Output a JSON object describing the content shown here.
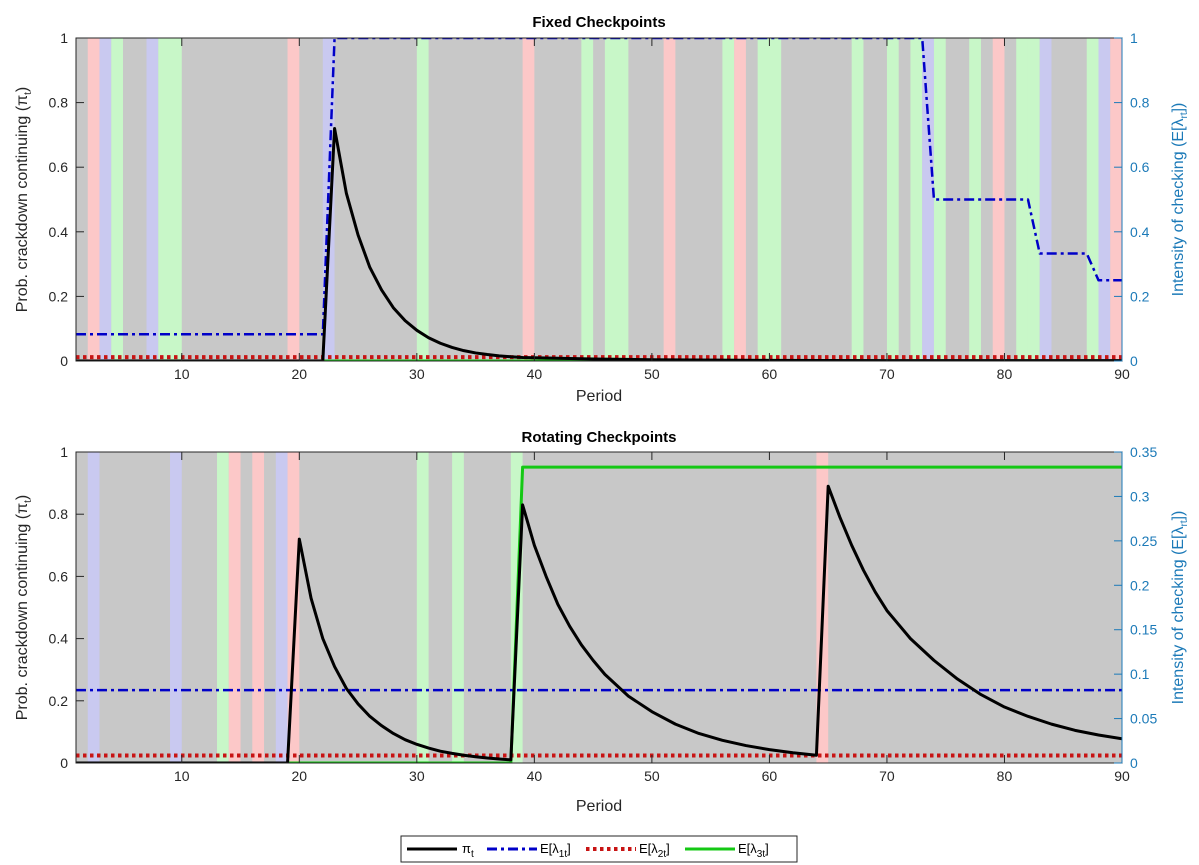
{
  "colors": {
    "background_gray": "#c8c8c8",
    "band_blue": "#c9c9f0",
    "band_red": "#fcc8c8",
    "band_green": "#c8f7c8",
    "pi_line": "#000000",
    "lambda1_line": "#0000c8",
    "lambda2_line": "#c81414",
    "lambda3_line": "#14c814",
    "right_axis": "#1c7ab8"
  },
  "legend": {
    "pi": "π",
    "pi_sub": "t",
    "l1": "E[λ",
    "l1_sub": "1t",
    "l2": "E[λ",
    "l2_sub": "2t",
    "l3": "E[λ",
    "l3_sub": "3t",
    "close": "]"
  },
  "chart_data": [
    {
      "type": "line",
      "title": "Fixed Checkpoints",
      "xlabel": "Period",
      "ylabel_left": "Prob. crackdown continuing (π",
      "ylabel_left_sub": "t",
      "ylabel_left_close": ")",
      "ylabel_right": "Intensity of checking (E[λ",
      "ylabel_right_sub": "rt",
      "ylabel_right_close": "])",
      "xlim": [
        1,
        90
      ],
      "ylim_left": [
        0,
        1
      ],
      "ylim_right": [
        0,
        1
      ],
      "xticks": [
        10,
        20,
        30,
        40,
        50,
        60,
        70,
        80,
        90
      ],
      "yticks_left": [
        0,
        0.2,
        0.4,
        0.6,
        0.8,
        1
      ],
      "yticks_left_labels": [
        "0",
        "0.2",
        "0.4",
        "0.6",
        "0.8",
        "1"
      ],
      "yticks_right": [
        0,
        0.2,
        0.4,
        0.6,
        0.8,
        1
      ],
      "yticks_right_labels": [
        "0",
        "0.2",
        "0.4",
        "0.6",
        "0.8",
        "1"
      ],
      "bands": [
        {
          "start": 2,
          "end": 3,
          "color": "red"
        },
        {
          "start": 3,
          "end": 4,
          "color": "blue"
        },
        {
          "start": 4,
          "end": 5,
          "color": "green"
        },
        {
          "start": 7,
          "end": 8,
          "color": "blue"
        },
        {
          "start": 8,
          "end": 10,
          "color": "green"
        },
        {
          "start": 19,
          "end": 20,
          "color": "red"
        },
        {
          "start": 22,
          "end": 23,
          "color": "blue"
        },
        {
          "start": 30,
          "end": 31,
          "color": "green"
        },
        {
          "start": 39,
          "end": 40,
          "color": "red"
        },
        {
          "start": 44,
          "end": 45,
          "color": "green"
        },
        {
          "start": 46,
          "end": 48,
          "color": "green"
        },
        {
          "start": 51,
          "end": 52,
          "color": "red"
        },
        {
          "start": 56,
          "end": 57,
          "color": "green"
        },
        {
          "start": 57,
          "end": 58,
          "color": "red"
        },
        {
          "start": 59,
          "end": 61,
          "color": "green"
        },
        {
          "start": 67,
          "end": 68,
          "color": "green"
        },
        {
          "start": 70,
          "end": 71,
          "color": "green"
        },
        {
          "start": 72,
          "end": 73,
          "color": "green"
        },
        {
          "start": 73,
          "end": 74,
          "color": "blue"
        },
        {
          "start": 74,
          "end": 75,
          "color": "green"
        },
        {
          "start": 77,
          "end": 78,
          "color": "green"
        },
        {
          "start": 79,
          "end": 80,
          "color": "red"
        },
        {
          "start": 81,
          "end": 82,
          "color": "green"
        },
        {
          "start": 82,
          "end": 83,
          "color": "green"
        },
        {
          "start": 83,
          "end": 84,
          "color": "blue"
        },
        {
          "start": 87,
          "end": 88,
          "color": "green"
        },
        {
          "start": 88,
          "end": 89,
          "color": "blue"
        },
        {
          "start": 89,
          "end": 90,
          "color": "red"
        }
      ],
      "series": [
        {
          "key": "pi",
          "axis": "left",
          "color": "#000000",
          "style": "solid",
          "x": [
            1,
            22,
            23,
            24,
            25,
            26,
            27,
            28,
            29,
            30,
            31,
            32,
            33,
            34,
            35,
            36,
            37,
            38,
            39,
            40,
            45,
            50,
            60,
            70,
            80,
            90
          ],
          "y": [
            0,
            0,
            0.72,
            0.52,
            0.39,
            0.29,
            0.22,
            0.165,
            0.125,
            0.095,
            0.072,
            0.055,
            0.042,
            0.032,
            0.025,
            0.02,
            0.016,
            0.013,
            0.011,
            0.01,
            0.006,
            0.004,
            0.002,
            0.001,
            0.001,
            0.001
          ]
        },
        {
          "key": "l1",
          "axis": "right",
          "color": "#0000c8",
          "style": "dashdot",
          "x": [
            1,
            22,
            23,
            73,
            74,
            82,
            83,
            87,
            88,
            89,
            90
          ],
          "y": [
            0.083,
            0.083,
            1,
            1,
            0.5,
            0.5,
            0.333,
            0.333,
            0.25,
            0.25,
            0.25
          ]
        },
        {
          "key": "l2",
          "axis": "right",
          "color": "#c81414",
          "style": "dotted",
          "x": [
            1,
            90
          ],
          "y": [
            0.012,
            0.012
          ]
        },
        {
          "key": "l3",
          "axis": "right",
          "color": "#14c814",
          "style": "solid",
          "x": [
            1,
            90
          ],
          "y": [
            0,
            0
          ]
        }
      ]
    },
    {
      "type": "line",
      "title": "Rotating Checkpoints",
      "xlabel": "Period",
      "ylabel_left": "Prob. crackdown continuing (π",
      "ylabel_left_sub": "t",
      "ylabel_left_close": ")",
      "ylabel_right": "Intensity of checking (E[λ",
      "ylabel_right_sub": "rt",
      "ylabel_right_close": "])",
      "xlim": [
        1,
        90
      ],
      "ylim_left": [
        0,
        1
      ],
      "ylim_right": [
        0,
        0.35
      ],
      "xticks": [
        10,
        20,
        30,
        40,
        50,
        60,
        70,
        80,
        90
      ],
      "yticks_left": [
        0,
        0.2,
        0.4,
        0.6,
        0.8,
        1
      ],
      "yticks_left_labels": [
        "0",
        "0.2",
        "0.4",
        "0.6",
        "0.8",
        "1"
      ],
      "yticks_right": [
        0,
        0.05,
        0.1,
        0.15,
        0.2,
        0.25,
        0.3,
        0.35
      ],
      "yticks_right_labels": [
        "0",
        "0.05",
        "0.1",
        "0.15",
        "0.2",
        "0.25",
        "0.3",
        "0.35"
      ],
      "bands": [
        {
          "start": 2,
          "end": 3,
          "color": "blue"
        },
        {
          "start": 9,
          "end": 10,
          "color": "blue"
        },
        {
          "start": 13,
          "end": 14,
          "color": "green"
        },
        {
          "start": 14,
          "end": 15,
          "color": "red"
        },
        {
          "start": 16,
          "end": 17,
          "color": "red"
        },
        {
          "start": 18,
          "end": 19,
          "color": "blue"
        },
        {
          "start": 19,
          "end": 20,
          "color": "red"
        },
        {
          "start": 30,
          "end": 31,
          "color": "green"
        },
        {
          "start": 33,
          "end": 34,
          "color": "green"
        },
        {
          "start": 38,
          "end": 39,
          "color": "green"
        },
        {
          "start": 64,
          "end": 65,
          "color": "red"
        }
      ],
      "series": [
        {
          "key": "pi",
          "axis": "left",
          "color": "#000000",
          "style": "solid",
          "x": [
            1,
            19,
            20,
            21,
            22,
            23,
            24,
            25,
            26,
            27,
            28,
            29,
            30,
            31,
            32,
            33,
            34,
            35,
            36,
            37,
            38,
            39,
            40,
            41,
            42,
            43,
            44,
            45,
            46,
            48,
            50,
            52,
            54,
            56,
            58,
            60,
            62,
            64,
            65,
            66,
            67,
            68,
            69,
            70,
            72,
            74,
            76,
            78,
            80,
            82,
            84,
            86,
            88,
            90
          ],
          "y": [
            0,
            0,
            0.72,
            0.53,
            0.4,
            0.31,
            0.24,
            0.19,
            0.15,
            0.12,
            0.095,
            0.075,
            0.06,
            0.048,
            0.038,
            0.031,
            0.025,
            0.02,
            0.016,
            0.013,
            0.01,
            0.83,
            0.7,
            0.6,
            0.51,
            0.44,
            0.38,
            0.33,
            0.285,
            0.215,
            0.165,
            0.125,
            0.095,
            0.073,
            0.056,
            0.043,
            0.033,
            0.025,
            0.89,
            0.79,
            0.7,
            0.62,
            0.55,
            0.49,
            0.4,
            0.33,
            0.27,
            0.22,
            0.18,
            0.15,
            0.125,
            0.105,
            0.09,
            0.078
          ]
        },
        {
          "key": "l1",
          "axis": "right",
          "color": "#0000c8",
          "style": "dashdot",
          "x": [
            1,
            90
          ],
          "y": [
            0.082,
            0.082
          ]
        },
        {
          "key": "l2",
          "axis": "right",
          "color": "#c81414",
          "style": "dotted",
          "x": [
            1,
            90
          ],
          "y": [
            0.0085,
            0.0085
          ]
        },
        {
          "key": "l3",
          "axis": "right",
          "color": "#14c814",
          "style": "solid",
          "x": [
            1,
            38,
            39,
            90
          ],
          "y": [
            0,
            0,
            0.333,
            0.333
          ]
        }
      ]
    }
  ]
}
